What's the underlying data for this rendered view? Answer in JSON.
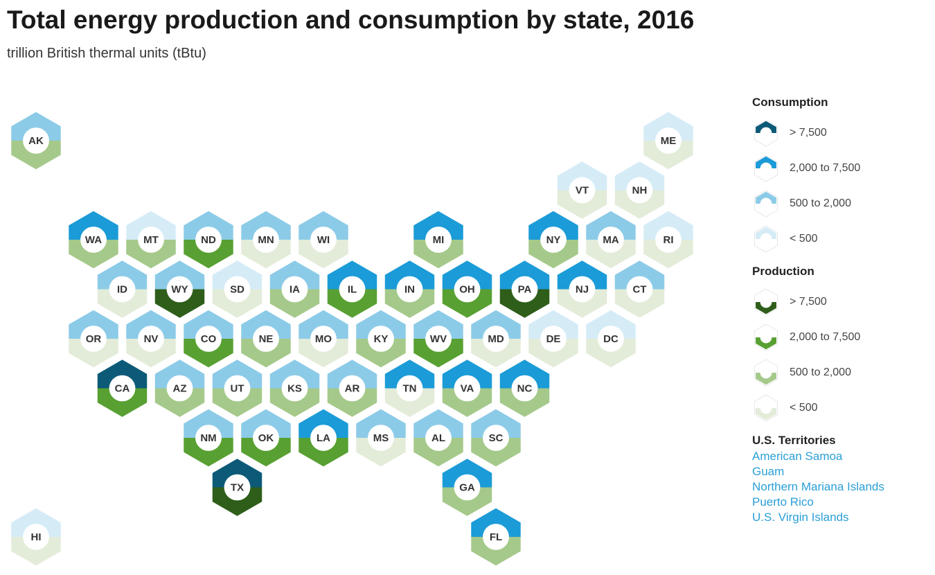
{
  "title": "Total energy production and consumption by state, 2016",
  "subtitle": "trillion British thermal units (tBtu)",
  "colors": {
    "consumption": [
      "#d5ecf7",
      "#8ccbe8",
      "#1b9bd7",
      "#0d5a78"
    ],
    "production": [
      "#e3ecd9",
      "#a5c98a",
      "#58a032",
      "#2e5e1a"
    ]
  },
  "legend": {
    "consumption": {
      "title": "Consumption",
      "items": [
        {
          "label": "> 7,500",
          "level": 3
        },
        {
          "label": "2,000 to 7,500",
          "level": 2
        },
        {
          "label": "500 to 2,000",
          "level": 1
        },
        {
          "label": "< 500",
          "level": 0
        }
      ]
    },
    "production": {
      "title": "Production",
      "items": [
        {
          "label": "> 7,500",
          "level": 3
        },
        {
          "label": "2,000 to 7,500",
          "level": 2
        },
        {
          "label": "500 to 2,000",
          "level": 1
        },
        {
          "label": "< 500",
          "level": 0
        }
      ]
    }
  },
  "territories": {
    "title": "U.S. Territories",
    "items": [
      "American Samoa",
      "Guam",
      "Northern Mariana Islands",
      "Puerto Rico",
      "U.S. Virgin Islands"
    ]
  },
  "states": [
    {
      "abbr": "AK",
      "row": 0,
      "col": 0,
      "consumption": 1,
      "production": 1
    },
    {
      "abbr": "ME",
      "row": 0,
      "col": 11,
      "consumption": 0,
      "production": 0
    },
    {
      "abbr": "VT",
      "row": 1,
      "col": 9.5,
      "consumption": 0,
      "production": 0
    },
    {
      "abbr": "NH",
      "row": 1,
      "col": 10.5,
      "consumption": 0,
      "production": 0
    },
    {
      "abbr": "WA",
      "row": 2,
      "col": 1,
      "consumption": 2,
      "production": 1
    },
    {
      "abbr": "MT",
      "row": 2,
      "col": 2,
      "consumption": 0,
      "production": 1
    },
    {
      "abbr": "ND",
      "row": 2,
      "col": 3,
      "consumption": 1,
      "production": 2
    },
    {
      "abbr": "MN",
      "row": 2,
      "col": 4,
      "consumption": 1,
      "production": 0
    },
    {
      "abbr": "WI",
      "row": 2,
      "col": 5,
      "consumption": 1,
      "production": 0
    },
    {
      "abbr": "MI",
      "row": 2,
      "col": 7,
      "consumption": 2,
      "production": 1
    },
    {
      "abbr": "NY",
      "row": 2,
      "col": 9,
      "consumption": 2,
      "production": 1
    },
    {
      "abbr": "MA",
      "row": 2,
      "col": 10,
      "consumption": 1,
      "production": 0
    },
    {
      "abbr": "RI",
      "row": 2,
      "col": 11,
      "consumption": 0,
      "production": 0
    },
    {
      "abbr": "ID",
      "row": 3,
      "col": 1.5,
      "consumption": 1,
      "production": 0
    },
    {
      "abbr": "WY",
      "row": 3,
      "col": 2.5,
      "consumption": 1,
      "production": 3
    },
    {
      "abbr": "SD",
      "row": 3,
      "col": 3.5,
      "consumption": 0,
      "production": 0
    },
    {
      "abbr": "IA",
      "row": 3,
      "col": 4.5,
      "consumption": 1,
      "production": 1
    },
    {
      "abbr": "IL",
      "row": 3,
      "col": 5.5,
      "consumption": 2,
      "production": 2
    },
    {
      "abbr": "IN",
      "row": 3,
      "col": 6.5,
      "consumption": 2,
      "production": 1
    },
    {
      "abbr": "OH",
      "row": 3,
      "col": 7.5,
      "consumption": 2,
      "production": 2
    },
    {
      "abbr": "PA",
      "row": 3,
      "col": 8.5,
      "consumption": 2,
      "production": 3
    },
    {
      "abbr": "NJ",
      "row": 3,
      "col": 9.5,
      "consumption": 2,
      "production": 0
    },
    {
      "abbr": "CT",
      "row": 3,
      "col": 10.5,
      "consumption": 1,
      "production": 0
    },
    {
      "abbr": "OR",
      "row": 4,
      "col": 1,
      "consumption": 1,
      "production": 0
    },
    {
      "abbr": "NV",
      "row": 4,
      "col": 2,
      "consumption": 1,
      "production": 0
    },
    {
      "abbr": "CO",
      "row": 4,
      "col": 3,
      "consumption": 1,
      "production": 2
    },
    {
      "abbr": "NE",
      "row": 4,
      "col": 4,
      "consumption": 1,
      "production": 1
    },
    {
      "abbr": "MO",
      "row": 4,
      "col": 5,
      "consumption": 1,
      "production": 0
    },
    {
      "abbr": "KY",
      "row": 4,
      "col": 6,
      "consumption": 1,
      "production": 1
    },
    {
      "abbr": "WV",
      "row": 4,
      "col": 7,
      "consumption": 1,
      "production": 2
    },
    {
      "abbr": "MD",
      "row": 4,
      "col": 8,
      "consumption": 1,
      "production": 0
    },
    {
      "abbr": "DE",
      "row": 4,
      "col": 9,
      "consumption": 0,
      "production": 0
    },
    {
      "abbr": "DC",
      "row": 4,
      "col": 10,
      "consumption": 0,
      "production": 0
    },
    {
      "abbr": "CA",
      "row": 5,
      "col": 1.5,
      "consumption": 3,
      "production": 2
    },
    {
      "abbr": "AZ",
      "row": 5,
      "col": 2.5,
      "consumption": 1,
      "production": 1
    },
    {
      "abbr": "UT",
      "row": 5,
      "col": 3.5,
      "consumption": 1,
      "production": 1
    },
    {
      "abbr": "KS",
      "row": 5,
      "col": 4.5,
      "consumption": 1,
      "production": 1
    },
    {
      "abbr": "AR",
      "row": 5,
      "col": 5.5,
      "consumption": 1,
      "production": 1
    },
    {
      "abbr": "TN",
      "row": 5,
      "col": 6.5,
      "consumption": 2,
      "production": 0
    },
    {
      "abbr": "VA",
      "row": 5,
      "col": 7.5,
      "consumption": 2,
      "production": 1
    },
    {
      "abbr": "NC",
      "row": 5,
      "col": 8.5,
      "consumption": 2,
      "production": 1
    },
    {
      "abbr": "NM",
      "row": 6,
      "col": 3,
      "consumption": 1,
      "production": 2
    },
    {
      "abbr": "OK",
      "row": 6,
      "col": 4,
      "consumption": 1,
      "production": 2
    },
    {
      "abbr": "LA",
      "row": 6,
      "col": 5,
      "consumption": 2,
      "production": 2
    },
    {
      "abbr": "MS",
      "row": 6,
      "col": 6,
      "consumption": 1,
      "production": 0
    },
    {
      "abbr": "AL",
      "row": 6,
      "col": 7,
      "consumption": 1,
      "production": 1
    },
    {
      "abbr": "SC",
      "row": 6,
      "col": 8,
      "consumption": 1,
      "production": 1
    },
    {
      "abbr": "TX",
      "row": 7,
      "col": 3.5,
      "consumption": 3,
      "production": 3
    },
    {
      "abbr": "GA",
      "row": 7,
      "col": 7.5,
      "consumption": 2,
      "production": 1
    },
    {
      "abbr": "HI",
      "row": 8,
      "col": 0,
      "consumption": 0,
      "production": 0
    },
    {
      "abbr": "FL",
      "row": 8,
      "col": 8,
      "consumption": 2,
      "production": 1
    }
  ]
}
